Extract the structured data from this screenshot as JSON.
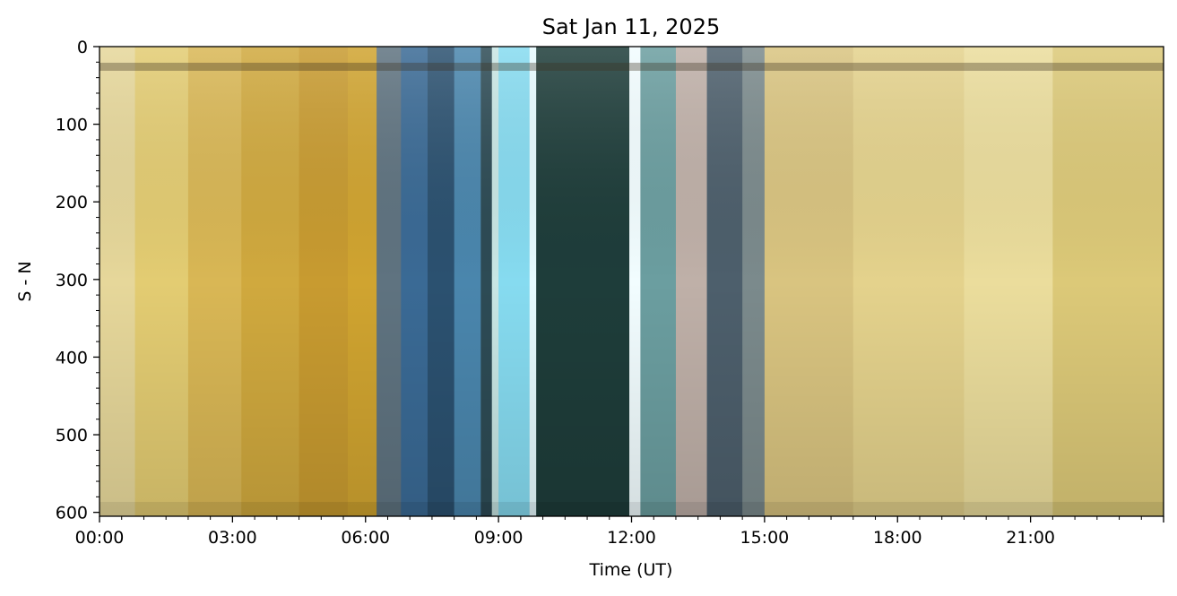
{
  "chart_data": {
    "type": "heatmap",
    "title": "Sat Jan 11, 2025",
    "xlabel": "Time (UT)",
    "ylabel": "S - N",
    "xlim": [
      "00:00",
      "24:00"
    ],
    "ylim": [
      605,
      0
    ],
    "x_ticks": [
      "00:00",
      "03:00",
      "06:00",
      "09:00",
      "12:00",
      "15:00",
      "18:00",
      "21:00"
    ],
    "x_minor_step_hours": 0.5,
    "y_ticks": [
      0,
      100,
      200,
      300,
      400,
      500,
      600
    ],
    "y_minor_step": 20,
    "grid": false,
    "bands": [
      {
        "start": 0.0,
        "end": 0.8,
        "color": "#e6d79a"
      },
      {
        "start": 0.8,
        "end": 2.0,
        "color": "#e3cc72"
      },
      {
        "start": 2.0,
        "end": 3.2,
        "color": "#d9b755"
      },
      {
        "start": 3.2,
        "end": 4.5,
        "color": "#d0a93e"
      },
      {
        "start": 4.5,
        "end": 5.6,
        "color": "#c89b30"
      },
      {
        "start": 5.6,
        "end": 6.25,
        "color": "#d0a430"
      },
      {
        "start": 6.25,
        "end": 6.8,
        "color": "#5f7380"
      },
      {
        "start": 6.8,
        "end": 7.4,
        "color": "#3a6a95"
      },
      {
        "start": 7.4,
        "end": 8.0,
        "color": "#2b5170"
      },
      {
        "start": 8.0,
        "end": 8.6,
        "color": "#4a86ad"
      },
      {
        "start": 8.6,
        "end": 8.85,
        "color": "#2d4b55"
      },
      {
        "start": 8.85,
        "end": 9.0,
        "color": "#c8e6e4"
      },
      {
        "start": 9.0,
        "end": 9.7,
        "color": "#86dbf0"
      },
      {
        "start": 9.7,
        "end": 9.85,
        "color": "#e6fbff"
      },
      {
        "start": 9.85,
        "end": 11.95,
        "color": "#1e3d3a"
      },
      {
        "start": 11.95,
        "end": 12.2,
        "color": "#f2fdff"
      },
      {
        "start": 12.2,
        "end": 13.0,
        "color": "#6b9ea0"
      },
      {
        "start": 13.0,
        "end": 13.7,
        "color": "#bfb0a8"
      },
      {
        "start": 13.7,
        "end": 14.5,
        "color": "#4d5f6c"
      },
      {
        "start": 14.5,
        "end": 15.0,
        "color": "#7b8a8c"
      },
      {
        "start": 15.0,
        "end": 17.0,
        "color": "#d9c480"
      },
      {
        "start": 17.0,
        "end": 19.5,
        "color": "#e4d28c"
      },
      {
        "start": 19.5,
        "end": 21.5,
        "color": "#ebdd9c"
      },
      {
        "start": 21.5,
        "end": 24.0,
        "color": "#dcc978"
      }
    ]
  }
}
